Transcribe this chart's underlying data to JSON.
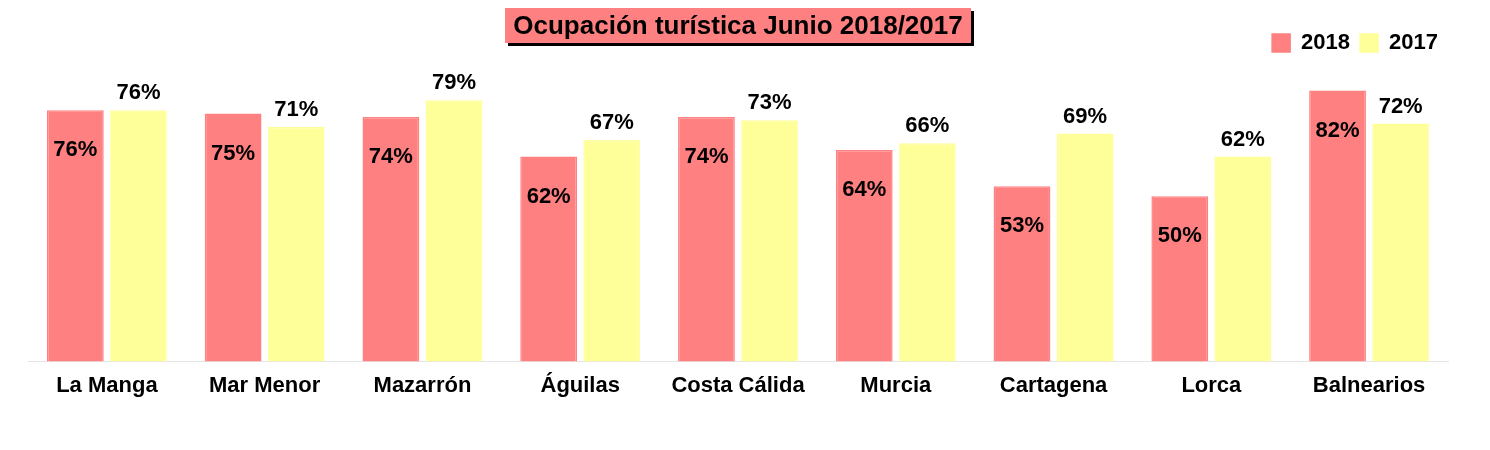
{
  "chart_data": {
    "type": "bar",
    "title": "Ocupación turística Junio 2018/2017",
    "categories": [
      "La Manga",
      "Mar Menor",
      "Mazarrón",
      "Águilas",
      "Costa Cálida",
      "Murcia",
      "Cartagena",
      "Lorca",
      "Balnearios"
    ],
    "series": [
      {
        "name": "2018",
        "color": "#ff8080",
        "values": [
          76,
          75,
          74,
          62,
          74,
          64,
          53,
          50,
          82
        ],
        "value_labels": [
          "76%",
          "75%",
          "74%",
          "62%",
          "74%",
          "64%",
          "53%",
          "50%",
          "82%"
        ]
      },
      {
        "name": "2017",
        "color": "#ffff99",
        "values": [
          76,
          71,
          79,
          67,
          73,
          66,
          69,
          62,
          72
        ],
        "value_labels": [
          "76%",
          "71%",
          "79%",
          "67%",
          "73%",
          "66%",
          "69%",
          "62%",
          "72%"
        ]
      }
    ],
    "legend": "top right",
    "grid": false
  }
}
